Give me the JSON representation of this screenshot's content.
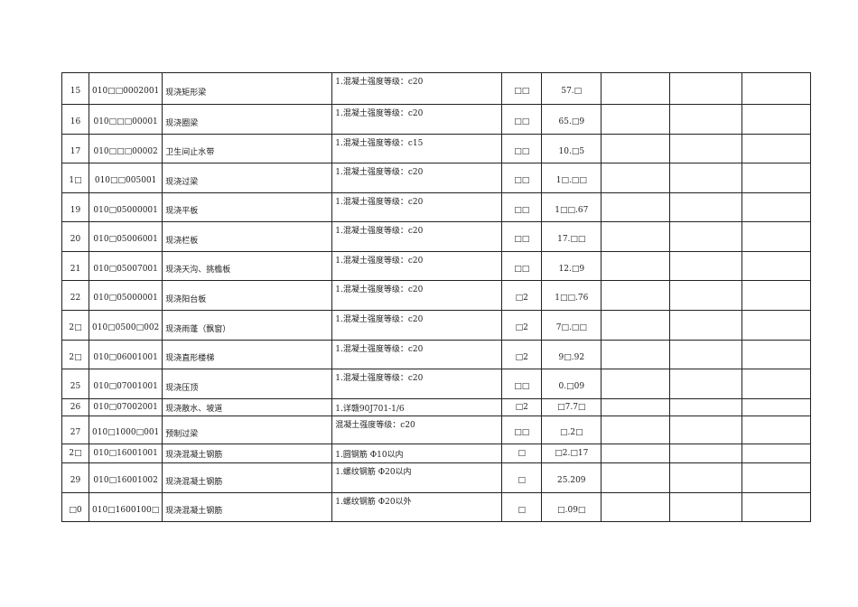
{
  "rows": [
    {
      "no": "15",
      "code": "010□□0002001",
      "name": "现浇矩形梁",
      "feature": "1.混凝土强度等级：c20",
      "unit": "□□",
      "qty": "57.□"
    },
    {
      "no": "16",
      "code": "010□□□00001",
      "name": "现浇圈梁",
      "feature": "1.混凝土强度等级：c20",
      "unit": "□□",
      "qty": "65.□9"
    },
    {
      "no": "17",
      "code": "010□□□00002",
      "name": "卫生间止水带",
      "feature": "1.混凝土强度等级：c15",
      "unit": "□□",
      "qty": "10.□5"
    },
    {
      "no": "1□",
      "code": "010□□005001",
      "name": "现浇过梁",
      "feature": "1.混凝土强度等级：c20",
      "unit": "□□",
      "qty": "1□.□□"
    },
    {
      "no": "19",
      "code": "010□05000001",
      "name": "现浇平板",
      "feature": "1.混凝土强度等级：c20",
      "unit": "□□",
      "qty": "1□□.67"
    },
    {
      "no": "20",
      "code": "010□05006001",
      "name": "现浇栏板",
      "feature": "1.混凝土强度等级：c20",
      "unit": "□□",
      "qty": "17.□□"
    },
    {
      "no": "21",
      "code": "010□05007001",
      "name": "现浇天沟、挑檐板",
      "feature": "1.混凝土强度等级：c20",
      "unit": "□□",
      "qty": "12.□9"
    },
    {
      "no": "22",
      "code": "010□05000001",
      "name": "现浇阳台板",
      "feature": "1.混凝土强度等级：c20",
      "unit": "□2",
      "qty": "1□□.76"
    },
    {
      "no": "2□",
      "code": "010□0500□002",
      "name": "现浇雨蓬（飘窗）",
      "feature": "1.混凝土强度等级：c20",
      "unit": "□2",
      "qty": "7□.□□"
    },
    {
      "no": "2□",
      "code": "010□06001001",
      "name": "现浇直形楼梯",
      "feature": "1.混凝土强度等级：c20",
      "unit": "□2",
      "qty": "9□.92"
    },
    {
      "no": "25",
      "code": "010□07001001",
      "name": "现浇压顶",
      "feature": "1.混凝土强度等级：c20",
      "unit": "□□",
      "qty": "0.□09"
    },
    {
      "no": "26",
      "code": "010□07002001",
      "name": "现浇散水、坡道",
      "feature": "1.详赣90J701-1/6",
      "unit": "□2",
      "qty": "□7.7□"
    },
    {
      "no": "27",
      "code": "010□1000□001",
      "name": "预制过梁",
      "feature": "混凝土强度等级：c20",
      "unit": "□□",
      "qty": "□.2□"
    },
    {
      "no": "2□",
      "code": "010□16001001",
      "name": "现浇混凝土钢筋",
      "feature": "1.圆钢筋 Φ10以内",
      "unit": "□",
      "qty": "□2.□17"
    },
    {
      "no": "29",
      "code": "010□16001002",
      "name": "现浇混凝土钢筋",
      "feature": "1.螺纹钢筋 Φ20以内",
      "unit": "□",
      "qty": "25.209"
    },
    {
      "no": "□0",
      "code": "010□1600100□",
      "name": "现浇混凝土钢筋",
      "feature": "1.螺纹钢筋 Φ20以外",
      "unit": "□",
      "qty": "□.09□"
    }
  ]
}
